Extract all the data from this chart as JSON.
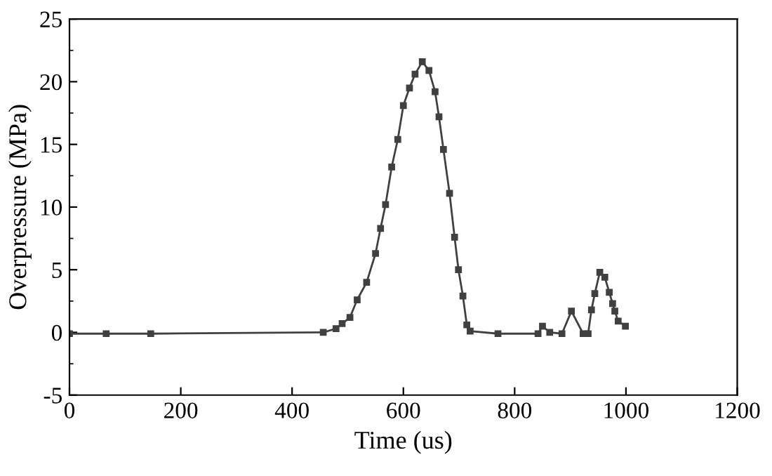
{
  "chart_data": {
    "type": "line",
    "xlabel": "Time (us)",
    "ylabel": "Overpressure (MPa)",
    "xlim": [
      0,
      1200
    ],
    "xticks": [
      0,
      200,
      400,
      600,
      800,
      1000,
      1200
    ],
    "ylim": [
      -5,
      25
    ],
    "yticks": [
      -5,
      0,
      5,
      10,
      15,
      20,
      25
    ],
    "grid": false,
    "legend": false,
    "marker": "square",
    "line_style": "solid",
    "series": [
      {
        "color": "#404040",
        "x": [
          0,
          66,
          146,
          456,
          479,
          490,
          504,
          517,
          534,
          550,
          559,
          568,
          579,
          590,
          600,
          611,
          621,
          634,
          646,
          657,
          664,
          672,
          683,
          692,
          699,
          707,
          714,
          720,
          770,
          842,
          850,
          863,
          885,
          902,
          923,
          932,
          938,
          944,
          953,
          962,
          970,
          976,
          980,
          986,
          999
        ],
        "values": [
          -0.1,
          -0.1,
          -0.1,
          0,
          0.3,
          0.7,
          1.2,
          2.6,
          4.0,
          6.3,
          8.3,
          10.2,
          13.2,
          15.4,
          18.1,
          19.5,
          20.6,
          21.6,
          20.9,
          19.2,
          17.2,
          14.6,
          11.1,
          7.6,
          5.0,
          2.9,
          0.6,
          0.1,
          -0.1,
          -0.1,
          0.5,
          0,
          -0.1,
          1.7,
          -0.1,
          -0.1,
          1.8,
          3.1,
          4.8,
          4.4,
          3.2,
          2.3,
          1.7,
          0.9,
          0.5
        ]
      }
    ]
  }
}
